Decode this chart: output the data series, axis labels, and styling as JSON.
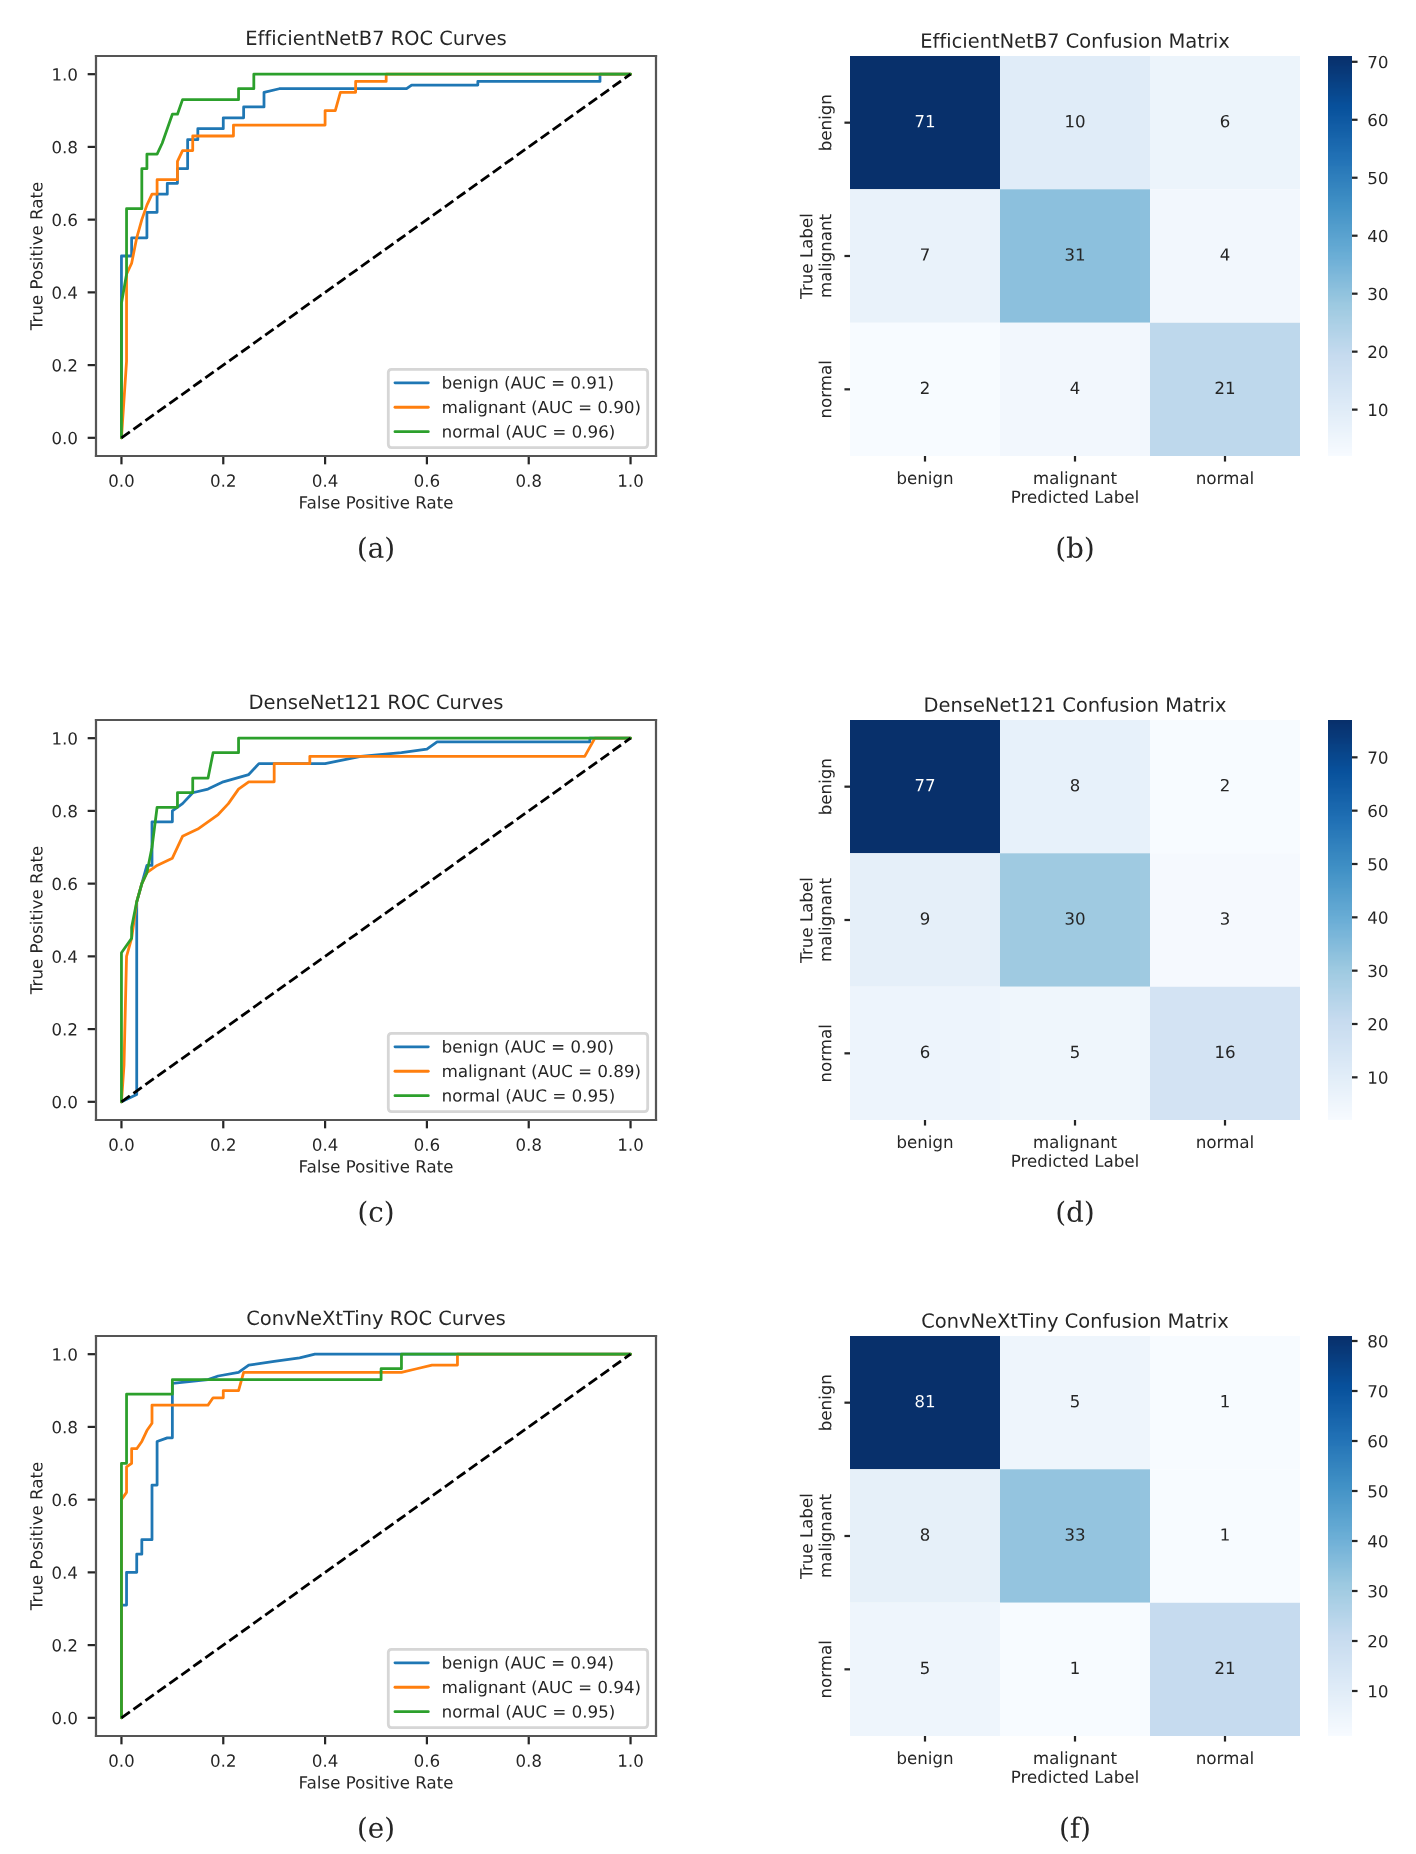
{
  "chart_data": [
    {
      "type": "line",
      "title": "EfficientNetB7 ROC Curves",
      "xlabel": "False Positive Rate",
      "ylabel": "True Positive Rate",
      "annotations": [
        "(a)"
      ],
      "legend": "bottom right",
      "grid": false,
      "xlim": [
        -0.05,
        1.05
      ],
      "ylim": [
        -0.05,
        1.05
      ],
      "xticks": [
        {
          "value": 0,
          "label": "0.0"
        },
        {
          "value": 0.2,
          "label": "0.2"
        },
        {
          "value": 0.4,
          "label": "0.4"
        },
        {
          "value": 0.6,
          "label": "0.6"
        },
        {
          "value": 0.8,
          "label": "0.8"
        },
        {
          "value": 1,
          "label": "1.0"
        }
      ],
      "yticks": [
        {
          "value": 0,
          "label": "0.0"
        },
        {
          "value": 0.2,
          "label": "0.2"
        },
        {
          "value": 0.4,
          "label": "0.4"
        },
        {
          "value": 0.6,
          "label": "0.6"
        },
        {
          "value": 0.8,
          "label": "0.8"
        },
        {
          "value": 1,
          "label": "1.0"
        }
      ],
      "series": [
        {
          "name": "benign (AUC = 0.91)",
          "color": "#1f77b4",
          "x": [
            0,
            0,
            0.02,
            0.02,
            0.05,
            0.05,
            0.07,
            0.07,
            0.09,
            0.09,
            0.11,
            0.11,
            0.13,
            0.13,
            0.15,
            0.15,
            0.2,
            0.2,
            0.24,
            0.24,
            0.28,
            0.28,
            0.31,
            0.56,
            0.57,
            0.7,
            0.7,
            0.94,
            0.94,
            1
          ],
          "values": [
            0,
            0.5,
            0.5,
            0.55,
            0.55,
            0.62,
            0.62,
            0.67,
            0.67,
            0.7,
            0.7,
            0.74,
            0.74,
            0.82,
            0.82,
            0.85,
            0.85,
            0.88,
            0.88,
            0.91,
            0.91,
            0.95,
            0.96,
            0.96,
            0.97,
            0.97,
            0.98,
            0.98,
            1,
            1
          ]
        },
        {
          "name": "malignant (AUC = 0.90)",
          "color": "#ff7f0e",
          "x": [
            0,
            0.01,
            0.01,
            0.02,
            0.03,
            0.04,
            0.05,
            0.06,
            0.07,
            0.07,
            0.11,
            0.11,
            0.12,
            0.14,
            0.14,
            0.22,
            0.22,
            0.4,
            0.4,
            0.42,
            0.43,
            0.46,
            0.46,
            0.52,
            0.52,
            1
          ],
          "values": [
            0,
            0.21,
            0.45,
            0.48,
            0.55,
            0.6,
            0.64,
            0.67,
            0.67,
            0.71,
            0.71,
            0.76,
            0.79,
            0.79,
            0.83,
            0.83,
            0.86,
            0.86,
            0.9,
            0.9,
            0.95,
            0.95,
            0.98,
            0.98,
            1,
            1
          ]
        },
        {
          "name": "normal (AUC = 0.96)",
          "color": "#2ca02c",
          "x": [
            0,
            0,
            0.01,
            0.01,
            0.04,
            0.04,
            0.05,
            0.05,
            0.07,
            0.08,
            0.09,
            0.1,
            0.11,
            0.12,
            0.23,
            0.23,
            0.26,
            0.26,
            1
          ],
          "values": [
            0,
            0.37,
            0.45,
            0.63,
            0.63,
            0.74,
            0.74,
            0.78,
            0.78,
            0.81,
            0.85,
            0.89,
            0.89,
            0.93,
            0.93,
            0.96,
            0.96,
            1,
            1
          ]
        },
        {
          "color": "#000000",
          "line_style": "dashed",
          "x": [
            0,
            1
          ],
          "values": [
            0,
            1
          ]
        }
      ]
    },
    {
      "type": "heatmap",
      "title": "EfficientNetB7 Confusion Matrix",
      "xlabel": "Predicted Label",
      "ylabel": "True Label",
      "annotations": [
        "(b)"
      ],
      "data_labels": true,
      "categories": [
        "benign",
        "malignant",
        "normal"
      ],
      "y_categories": [
        "benign",
        "malignant",
        "normal"
      ],
      "cells": [
        [
          71,
          10,
          6
        ],
        [
          7,
          31,
          4
        ],
        [
          2,
          4,
          21
        ]
      ],
      "clim": [
        2,
        71
      ],
      "cticks": [
        10,
        20,
        30,
        40,
        50,
        60,
        70
      ]
    },
    {
      "type": "line",
      "title": "DenseNet121 ROC Curves",
      "xlabel": "False Positive Rate",
      "ylabel": "True Positive Rate",
      "annotations": [
        "(c)"
      ],
      "legend": "bottom right",
      "grid": false,
      "xlim": [
        -0.05,
        1.05
      ],
      "ylim": [
        -0.05,
        1.05
      ],
      "xticks": [
        {
          "value": 0,
          "label": "0.0"
        },
        {
          "value": 0.2,
          "label": "0.2"
        },
        {
          "value": 0.4,
          "label": "0.4"
        },
        {
          "value": 0.6,
          "label": "0.6"
        },
        {
          "value": 0.8,
          "label": "0.8"
        },
        {
          "value": 1,
          "label": "1.0"
        }
      ],
      "yticks": [
        {
          "value": 0,
          "label": "0.0"
        },
        {
          "value": 0.2,
          "label": "0.2"
        },
        {
          "value": 0.4,
          "label": "0.4"
        },
        {
          "value": 0.6,
          "label": "0.6"
        },
        {
          "value": 0.8,
          "label": "0.8"
        },
        {
          "value": 1,
          "label": "1.0"
        }
      ],
      "series": [
        {
          "name": "benign (AUC = 0.90)",
          "color": "#1f77b4",
          "x": [
            0,
            0.03,
            0.03,
            0.04,
            0.05,
            0.06,
            0.06,
            0.1,
            0.1,
            0.12,
            0.14,
            0.17,
            0.2,
            0.25,
            0.27,
            0.4,
            0.47,
            0.55,
            0.6,
            0.62,
            0.92,
            0.92,
            1
          ],
          "values": [
            0,
            0.02,
            0.55,
            0.6,
            0.65,
            0.65,
            0.77,
            0.77,
            0.8,
            0.82,
            0.85,
            0.86,
            0.88,
            0.9,
            0.93,
            0.93,
            0.95,
            0.96,
            0.97,
            0.99,
            0.99,
            1,
            1
          ]
        },
        {
          "name": "malignant (AUC = 0.89)",
          "color": "#ff7f0e",
          "x": [
            0,
            0.005,
            0.01,
            0.02,
            0.03,
            0.04,
            0.05,
            0.07,
            0.1,
            0.12,
            0.15,
            0.19,
            0.21,
            0.23,
            0.25,
            0.3,
            0.3,
            0.37,
            0.37,
            0.91,
            0.93,
            1
          ],
          "values": [
            0,
            0.1,
            0.4,
            0.45,
            0.55,
            0.6,
            0.63,
            0.65,
            0.67,
            0.73,
            0.75,
            0.79,
            0.82,
            0.86,
            0.88,
            0.88,
            0.93,
            0.93,
            0.95,
            0.95,
            1,
            1
          ]
        },
        {
          "name": "normal (AUC = 0.95)",
          "color": "#2ca02c",
          "x": [
            0,
            0,
            0.02,
            0.02,
            0.03,
            0.04,
            0.05,
            0.06,
            0.07,
            0.11,
            0.11,
            0.14,
            0.14,
            0.17,
            0.18,
            0.23,
            0.23,
            1
          ],
          "values": [
            0,
            0.41,
            0.45,
            0.48,
            0.55,
            0.6,
            0.63,
            0.7,
            0.81,
            0.81,
            0.85,
            0.85,
            0.89,
            0.89,
            0.96,
            0.96,
            1,
            1
          ]
        },
        {
          "color": "#000000",
          "line_style": "dashed",
          "x": [
            0,
            1
          ],
          "values": [
            0,
            1
          ]
        }
      ]
    },
    {
      "type": "heatmap",
      "title": "DenseNet121 Confusion Matrix",
      "xlabel": "Predicted Label",
      "ylabel": "True Label",
      "annotations": [
        "(d)"
      ],
      "data_labels": true,
      "categories": [
        "benign",
        "malignant",
        "normal"
      ],
      "y_categories": [
        "benign",
        "malignant",
        "normal"
      ],
      "cells": [
        [
          77,
          8,
          2
        ],
        [
          9,
          30,
          3
        ],
        [
          6,
          5,
          16
        ]
      ],
      "clim": [
        2,
        77
      ],
      "cticks": [
        10,
        20,
        30,
        40,
        50,
        60,
        70
      ]
    },
    {
      "type": "line",
      "title": "ConvNeXtTiny ROC Curves",
      "xlabel": "False Positive Rate",
      "ylabel": "True Positive Rate",
      "annotations": [
        "(e)"
      ],
      "legend": "bottom right",
      "grid": false,
      "xlim": [
        -0.05,
        1.05
      ],
      "ylim": [
        -0.05,
        1.05
      ],
      "xticks": [
        {
          "value": 0,
          "label": "0.0"
        },
        {
          "value": 0.2,
          "label": "0.2"
        },
        {
          "value": 0.4,
          "label": "0.4"
        },
        {
          "value": 0.6,
          "label": "0.6"
        },
        {
          "value": 0.8,
          "label": "0.8"
        },
        {
          "value": 1,
          "label": "1.0"
        }
      ],
      "yticks": [
        {
          "value": 0,
          "label": "0.0"
        },
        {
          "value": 0.2,
          "label": "0.2"
        },
        {
          "value": 0.4,
          "label": "0.4"
        },
        {
          "value": 0.6,
          "label": "0.6"
        },
        {
          "value": 0.8,
          "label": "0.8"
        },
        {
          "value": 1,
          "label": "1.0"
        }
      ],
      "series": [
        {
          "name": "benign (AUC = 0.94)",
          "color": "#1f77b4",
          "x": [
            0,
            0,
            0.01,
            0.01,
            0.03,
            0.03,
            0.04,
            0.04,
            0.06,
            0.06,
            0.07,
            0.07,
            0.09,
            0.1,
            0.1,
            0.17,
            0.19,
            0.23,
            0.25,
            0.3,
            0.35,
            0.38,
            1
          ],
          "values": [
            0,
            0.31,
            0.31,
            0.4,
            0.4,
            0.45,
            0.45,
            0.49,
            0.49,
            0.64,
            0.64,
            0.76,
            0.77,
            0.77,
            0.92,
            0.93,
            0.94,
            0.95,
            0.97,
            0.98,
            0.99,
            1,
            1
          ]
        },
        {
          "name": "malignant (AUC = 0.94)",
          "color": "#ff7f0e",
          "x": [
            0,
            0,
            0.01,
            0.01,
            0.02,
            0.02,
            0.03,
            0.04,
            0.05,
            0.06,
            0.06,
            0.17,
            0.18,
            0.2,
            0.2,
            0.23,
            0.24,
            0.55,
            0.58,
            0.61,
            0.66,
            0.66,
            1
          ],
          "values": [
            0,
            0.6,
            0.62,
            0.69,
            0.7,
            0.74,
            0.74,
            0.76,
            0.79,
            0.81,
            0.86,
            0.86,
            0.88,
            0.88,
            0.9,
            0.9,
            0.95,
            0.95,
            0.96,
            0.97,
            0.97,
            1,
            1
          ]
        },
        {
          "name": "normal (AUC = 0.95)",
          "color": "#2ca02c",
          "x": [
            0,
            0,
            0.01,
            0.01,
            0.1,
            0.1,
            0.51,
            0.51,
            0.55,
            0.55,
            1
          ],
          "values": [
            0,
            0.7,
            0.7,
            0.89,
            0.89,
            0.93,
            0.93,
            0.96,
            0.96,
            1,
            1
          ]
        },
        {
          "color": "#000000",
          "line_style": "dashed",
          "x": [
            0,
            1
          ],
          "values": [
            0,
            1
          ]
        }
      ]
    },
    {
      "type": "heatmap",
      "title": "ConvNeXtTiny Confusion Matrix",
      "xlabel": "Predicted Label",
      "ylabel": "True Label",
      "annotations": [
        "(f)"
      ],
      "data_labels": true,
      "categories": [
        "benign",
        "malignant",
        "normal"
      ],
      "y_categories": [
        "benign",
        "malignant",
        "normal"
      ],
      "cells": [
        [
          81,
          5,
          1
        ],
        [
          8,
          33,
          1
        ],
        [
          5,
          1,
          21
        ]
      ],
      "clim": [
        1,
        81
      ],
      "cticks": [
        10,
        20,
        30,
        40,
        50,
        60,
        70,
        80
      ]
    }
  ]
}
